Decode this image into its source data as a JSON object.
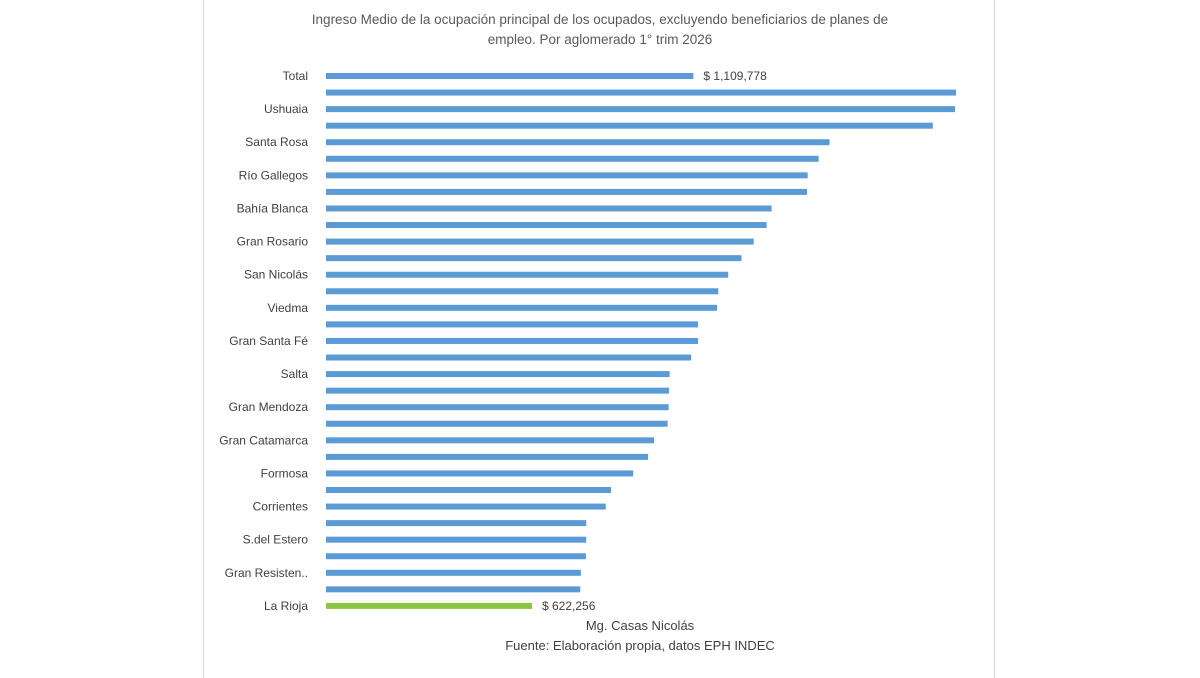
{
  "chart_data": {
    "type": "bar",
    "orientation": "horizontal",
    "title_lines": [
      "Ingreso Medio de la ocupación principal de los ocupados, excluyendo beneficiarios de planes de",
      "empleo. Por aglomerado 1° trim 2026"
    ],
    "categories": [
      "Total",
      "",
      "Ushuaia",
      "",
      "Santa Rosa",
      "",
      "Río Gallegos",
      "",
      "Bahía Blanca",
      "",
      "Gran Rosario",
      "",
      "San Nicolás",
      "",
      "Viedma",
      "",
      "Gran Santa Fé",
      "",
      "Salta",
      "",
      "Gran Mendoza",
      "",
      "Gran Catamarca",
      "",
      "Formosa",
      "",
      "Corrientes",
      "",
      "S.del Estero",
      "",
      "Gran Resisten..",
      "",
      "La Rioja"
    ],
    "values": [
      1109778,
      1903000,
      1900000,
      1833000,
      1521000,
      1488000,
      1455000,
      1453000,
      1346000,
      1331000,
      1292000,
      1255000,
      1215000,
      1185000,
      1181000,
      1124000,
      1124000,
      1103000,
      1038000,
      1036000,
      1035000,
      1032000,
      991000,
      973000,
      928000,
      861000,
      845000,
      786000,
      786000,
      785000,
      770000,
      768000,
      622256
    ],
    "data_labels": [
      {
        "index": 0,
        "text": "$ 1,109,778"
      },
      {
        "index": 32,
        "text": "$ 622,256"
      }
    ],
    "xlim": [
      0,
      1903000
    ],
    "grid": false,
    "legend": "none",
    "colors": {
      "bar": "#5b9bd5",
      "highlight": "#8cc63f",
      "text": "#404040"
    },
    "highlight_index": 32
  },
  "footer": {
    "author": "Mg. Casas Nicolás",
    "source": "Fuente: Elaboración propia, datos EPH INDEC"
  }
}
